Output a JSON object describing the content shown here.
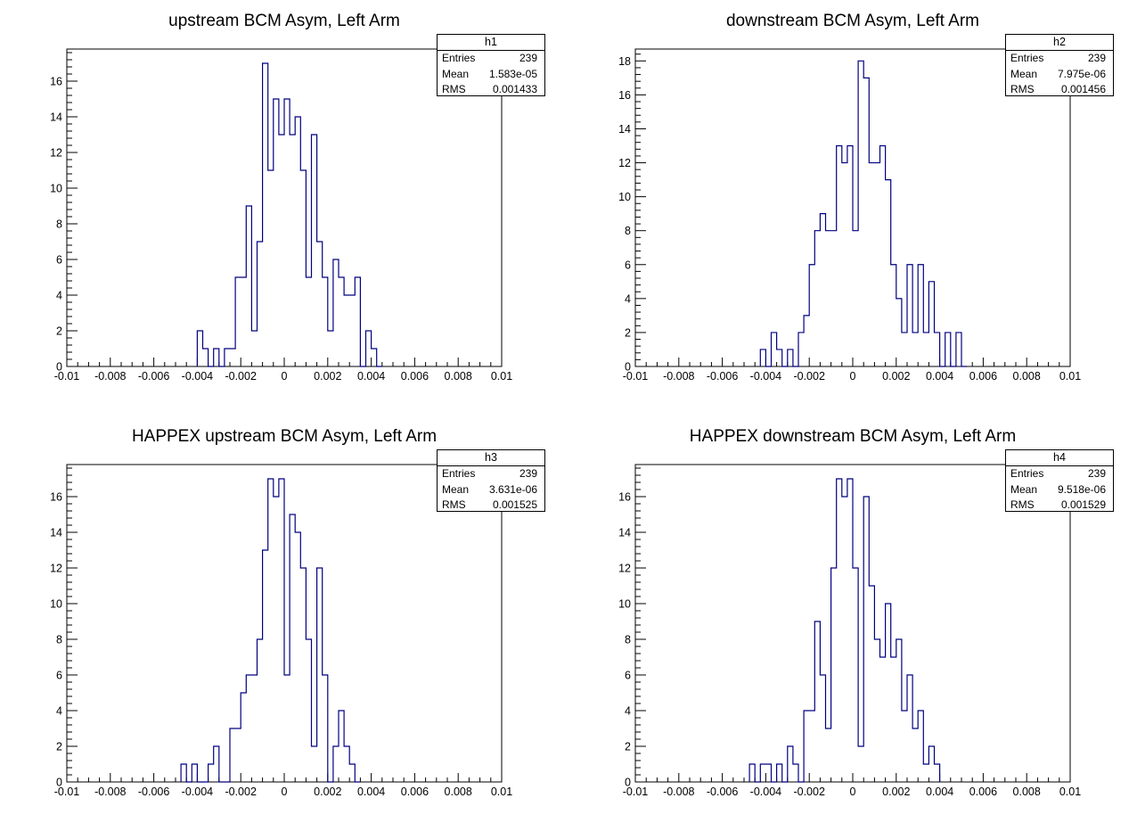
{
  "colors": {
    "line": "#000080",
    "axis": "#000000",
    "background": "#ffffff"
  },
  "chart_data": [
    {
      "type": "histogram",
      "title": "upstream BCM Asym, Left Arm",
      "stats": {
        "name": "h1",
        "entries": "239",
        "mean": "1.583e-05",
        "rms": "0.001433"
      },
      "stats_labels": {
        "entries": "Entries",
        "mean": "Mean",
        "rms": "RMS"
      },
      "xlim": [
        -0.01,
        0.01
      ],
      "ylim": [
        0,
        17.8
      ],
      "x_ticks": [
        "-0.01",
        "-0.008",
        "-0.006",
        "-0.004",
        "-0.002",
        "0",
        "0.002",
        "0.004",
        "0.006",
        "0.008",
        "0.01"
      ],
      "y_ticks": [
        "0",
        "2",
        "4",
        "6",
        "8",
        "10",
        "12",
        "14",
        "16"
      ],
      "bin_width": 0.00025,
      "bins_start": -0.004,
      "values": [
        2,
        1,
        0,
        1,
        0,
        1,
        1,
        5,
        5,
        9,
        2,
        7,
        17,
        11,
        15,
        13,
        15,
        13,
        14,
        11,
        5,
        13,
        7,
        5,
        2,
        6,
        5,
        4,
        4,
        5,
        0,
        2,
        1,
        0
      ]
    },
    {
      "type": "histogram",
      "title": "downstream BCM Asym, Left Arm",
      "stats": {
        "name": "h2",
        "entries": "239",
        "mean": "7.975e-06",
        "rms": "0.001456"
      },
      "stats_labels": {
        "entries": "Entries",
        "mean": "Mean",
        "rms": "RMS"
      },
      "xlim": [
        -0.01,
        0.01
      ],
      "ylim": [
        0,
        18.7
      ],
      "x_ticks": [
        "-0.01",
        "-0.008",
        "-0.006",
        "-0.004",
        "-0.002",
        "0",
        "0.002",
        "0.004",
        "0.006",
        "0.008",
        "0.01"
      ],
      "y_ticks": [
        "0",
        "2",
        "4",
        "6",
        "8",
        "10",
        "12",
        "14",
        "16",
        "18"
      ],
      "bin_width": 0.00025,
      "bins_start": -0.00425,
      "values": [
        1,
        0,
        2,
        1,
        0,
        1,
        0,
        2,
        3,
        6,
        8,
        9,
        8,
        8,
        13,
        12,
        13,
        8,
        18,
        17,
        12,
        12,
        13,
        11,
        6,
        4,
        2,
        6,
        2,
        6,
        2,
        5,
        2,
        0,
        2,
        0,
        2,
        0
      ]
    },
    {
      "type": "histogram",
      "title": "HAPPEX upstream BCM Asym, Left Arm",
      "stats": {
        "name": "h3",
        "entries": "239",
        "mean": "3.631e-06",
        "rms": "0.001525"
      },
      "stats_labels": {
        "entries": "Entries",
        "mean": "Mean",
        "rms": "RMS"
      },
      "xlim": [
        -0.01,
        0.01
      ],
      "ylim": [
        0,
        17.8
      ],
      "x_ticks": [
        "-0.01",
        "-0.008",
        "-0.006",
        "-0.004",
        "-0.002",
        "0",
        "0.002",
        "0.004",
        "0.006",
        "0.008",
        "0.01"
      ],
      "y_ticks": [
        "0",
        "2",
        "4",
        "6",
        "8",
        "10",
        "12",
        "14",
        "16"
      ],
      "bin_width": 0.00025,
      "bins_start": -0.00475,
      "values": [
        1,
        0,
        1,
        0,
        0,
        1,
        2,
        0,
        0,
        3,
        3,
        5,
        6,
        6,
        8,
        13,
        17,
        16,
        17,
        6,
        15,
        14,
        12,
        8,
        2,
        12,
        6,
        0,
        2,
        4,
        2,
        1,
        0
      ]
    },
    {
      "type": "histogram",
      "title": "HAPPEX downstream BCM Asym, Left Arm",
      "stats": {
        "name": "h4",
        "entries": "239",
        "mean": "9.518e-06",
        "rms": "0.001529"
      },
      "stats_labels": {
        "entries": "Entries",
        "mean": "Mean",
        "rms": "RMS"
      },
      "xlim": [
        -0.01,
        0.01
      ],
      "ylim": [
        0,
        17.8
      ],
      "x_ticks": [
        "-0.01",
        "-0.008",
        "-0.006",
        "-0.004",
        "-0.002",
        "0",
        "0.002",
        "0.004",
        "0.006",
        "0.008",
        "0.01"
      ],
      "y_ticks": [
        "0",
        "2",
        "4",
        "6",
        "8",
        "10",
        "12",
        "14",
        "16"
      ],
      "bin_width": 0.00025,
      "bins_start": -0.00475,
      "values": [
        1,
        0,
        1,
        1,
        0,
        1,
        0,
        2,
        1,
        0,
        4,
        4,
        9,
        6,
        3,
        12,
        17,
        16,
        17,
        12,
        2,
        16,
        11,
        8,
        7,
        10,
        7,
        8,
        4,
        6,
        3,
        4,
        1,
        2,
        1
      ]
    }
  ]
}
